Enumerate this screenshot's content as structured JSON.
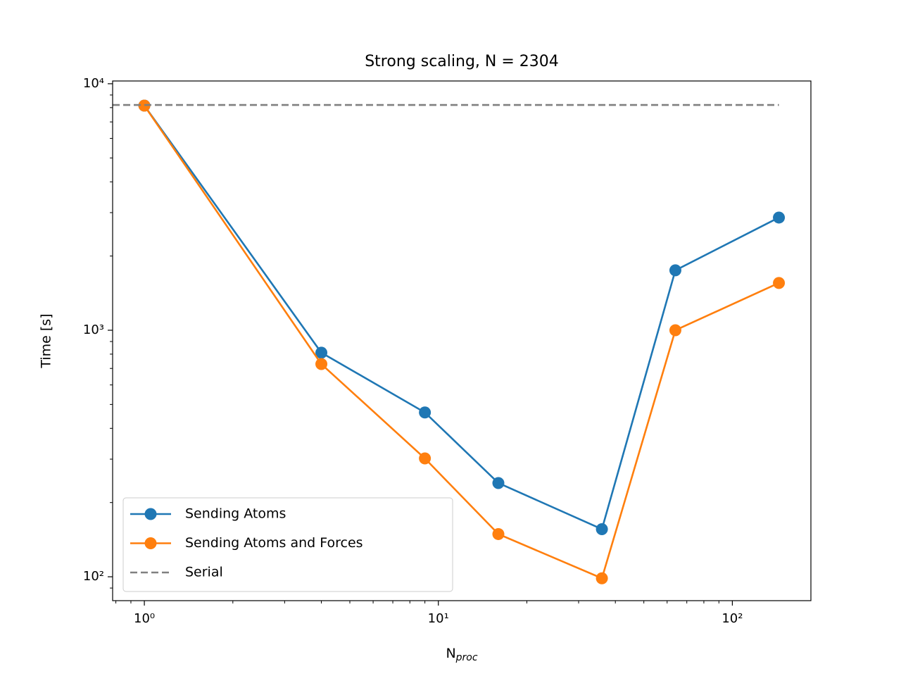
{
  "chart_data": {
    "type": "line",
    "title": "Strong scaling, N = 2304",
    "xlabel": {
      "main": "N",
      "sub": "proc"
    },
    "ylabel": "Time [s]",
    "x": [
      1,
      4,
      9,
      16,
      36,
      64,
      144
    ],
    "series": [
      {
        "name": "Sending Atoms",
        "color": "#1f77b4",
        "marker": true,
        "dash": false,
        "values": [
          8150,
          811,
          464,
          240,
          156,
          1750,
          2865
        ]
      },
      {
        "name": "Sending Atoms and Forces",
        "color": "#ff7f0e",
        "marker": true,
        "dash": false,
        "values": [
          8150,
          729,
          302,
          149,
          98.6,
          1000,
          1555
        ]
      },
      {
        "name": "Serial",
        "color": "#808080",
        "marker": false,
        "dash": true,
        "x": [
          0.78,
          144
        ],
        "values": [
          8200,
          8200
        ]
      }
    ],
    "xscale": "log",
    "yscale": "log",
    "xlim": [
      0.78,
      185
    ],
    "ylim": [
      80,
      10260
    ],
    "xticks": [
      {
        "value": 1,
        "label": "10⁰"
      },
      {
        "value": 10,
        "label": "10¹"
      },
      {
        "value": 100,
        "label": "10²"
      }
    ],
    "yticks": [
      {
        "value": 100,
        "label": "10²"
      },
      {
        "value": 1000,
        "label": "10³"
      },
      {
        "value": 10000,
        "label": "10⁴"
      }
    ],
    "xminor": [
      0.8,
      0.9,
      2,
      3,
      4,
      5,
      6,
      7,
      8,
      9,
      20,
      30,
      40,
      50,
      60,
      70,
      80,
      90
    ],
    "yminor": [
      90,
      200,
      300,
      400,
      500,
      600,
      700,
      800,
      900,
      2000,
      3000,
      4000,
      5000,
      6000,
      7000,
      8000,
      9000
    ],
    "grid": false,
    "legend": "lower left"
  }
}
